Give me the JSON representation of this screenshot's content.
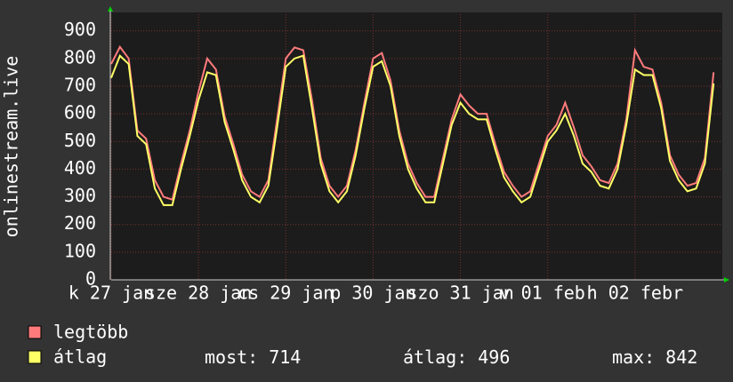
{
  "chart_data": {
    "type": "line",
    "y_label": "onlinestream.live",
    "xlim": [
      0,
      7
    ],
    "xticks": [
      {
        "value": 0,
        "label": "k 27 jan"
      },
      {
        "value": 1,
        "label": "sze 28 jan"
      },
      {
        "value": 2,
        "label": "cs 29 jan"
      },
      {
        "value": 3,
        "label": "p 30 jan"
      },
      {
        "value": 4,
        "label": "szo 31 jan"
      },
      {
        "value": 5,
        "label": "v 01 febr"
      },
      {
        "value": 6,
        "label": "h 02 febr"
      }
    ],
    "ylim": [
      0,
      960
    ],
    "yticks": [
      0,
      100,
      200,
      300,
      400,
      500,
      600,
      700,
      800,
      900
    ],
    "grid": true,
    "x": [
      0.0,
      0.1,
      0.2,
      0.3,
      0.4,
      0.5,
      0.6,
      0.7,
      0.8,
      0.9,
      1.0,
      1.1,
      1.2,
      1.3,
      1.4,
      1.5,
      1.6,
      1.7,
      1.8,
      1.9,
      2.0,
      2.1,
      2.2,
      2.3,
      2.4,
      2.5,
      2.6,
      2.7,
      2.8,
      2.9,
      3.0,
      3.1,
      3.2,
      3.3,
      3.4,
      3.5,
      3.6,
      3.7,
      3.8,
      3.9,
      4.0,
      4.1,
      4.2,
      4.3,
      4.4,
      4.5,
      4.6,
      4.7,
      4.8,
      4.9,
      5.0,
      5.1,
      5.2,
      5.3,
      5.4,
      5.5,
      5.6,
      5.7,
      5.8,
      5.9,
      6.0,
      6.1,
      6.2,
      6.3,
      6.4,
      6.5,
      6.6,
      6.7,
      6.8,
      6.9
    ],
    "series": [
      {
        "name": "legtöbb",
        "color": "#ff7b7b",
        "values": [
          780,
          842,
          800,
          540,
          510,
          360,
          300,
          290,
          420,
          540,
          680,
          800,
          760,
          590,
          490,
          380,
          320,
          300,
          360,
          580,
          800,
          840,
          830,
          650,
          440,
          340,
          300,
          340,
          470,
          640,
          800,
          820,
          720,
          540,
          420,
          350,
          300,
          300,
          440,
          580,
          670,
          630,
          600,
          600,
          490,
          390,
          340,
          300,
          320,
          420,
          520,
          560,
          640,
          550,
          450,
          410,
          360,
          350,
          420,
          580,
          830,
          770,
          760,
          640,
          450,
          380,
          340,
          350,
          440,
          750
        ]
      },
      {
        "name": "átlag",
        "color": "#ffff66",
        "values": [
          730,
          810,
          780,
          520,
          490,
          330,
          270,
          270,
          400,
          520,
          650,
          750,
          740,
          570,
          470,
          360,
          300,
          280,
          340,
          550,
          770,
          800,
          810,
          620,
          420,
          320,
          280,
          320,
          450,
          620,
          770,
          790,
          700,
          520,
          400,
          330,
          280,
          280,
          420,
          560,
          640,
          600,
          580,
          580,
          470,
          370,
          320,
          280,
          300,
          400,
          500,
          540,
          600,
          520,
          420,
          390,
          340,
          330,
          400,
          560,
          760,
          740,
          740,
          620,
          430,
          360,
          320,
          330,
          420,
          710
        ]
      }
    ],
    "stats": [
      {
        "label": "most:",
        "value": 714
      },
      {
        "label": "átlag:",
        "value": 496
      },
      {
        "label": "max:",
        "value": 842
      }
    ]
  }
}
